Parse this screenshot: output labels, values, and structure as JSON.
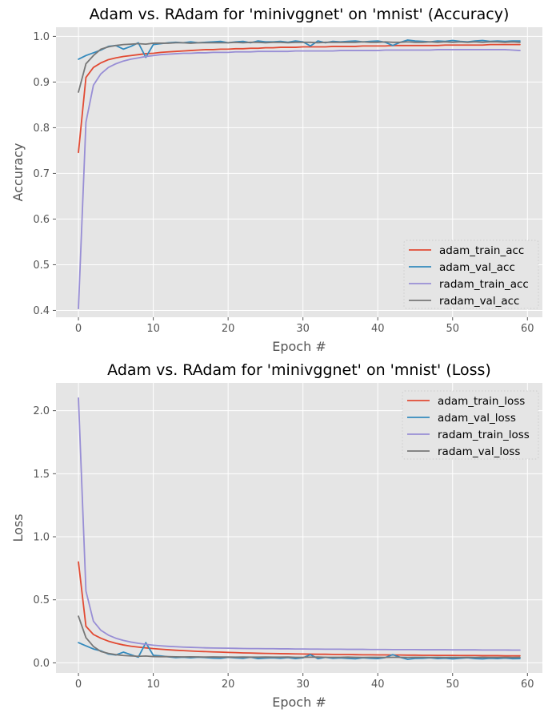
{
  "chart_data": [
    {
      "type": "line",
      "title": "Adam vs. RAdam for 'minivggnet' on 'mnist' (Accuracy)",
      "xlabel": "Epoch #",
      "ylabel": "Accuracy",
      "xlim": [
        -3,
        62
      ],
      "ylim": [
        0.385,
        1.02
      ],
      "xticks": [
        0,
        10,
        20,
        30,
        40,
        50,
        60
      ],
      "yticks": [
        0.4,
        0.5,
        0.6,
        0.7,
        0.8,
        0.9,
        1.0
      ],
      "ytick_labels": [
        "0.4",
        "0.5",
        "0.6",
        "0.7",
        "0.8",
        "0.9",
        "1.0"
      ],
      "grid": true,
      "legend_position": "lower-right",
      "x": [
        0,
        1,
        2,
        3,
        4,
        5,
        6,
        7,
        8,
        9,
        10,
        11,
        12,
        13,
        14,
        15,
        16,
        17,
        18,
        19,
        20,
        21,
        22,
        23,
        24,
        25,
        26,
        27,
        28,
        29,
        30,
        31,
        32,
        33,
        34,
        35,
        36,
        37,
        38,
        39,
        40,
        41,
        42,
        43,
        44,
        45,
        46,
        47,
        48,
        49,
        50,
        51,
        52,
        53,
        54,
        55,
        56,
        57,
        58,
        59
      ],
      "series": [
        {
          "name": "adam_train_acc",
          "color": "#E24A33",
          "values": [
            0.746,
            0.91,
            0.932,
            0.942,
            0.949,
            0.953,
            0.956,
            0.958,
            0.96,
            0.962,
            0.963,
            0.965,
            0.966,
            0.967,
            0.968,
            0.969,
            0.97,
            0.971,
            0.971,
            0.972,
            0.972,
            0.973,
            0.973,
            0.974,
            0.974,
            0.975,
            0.975,
            0.976,
            0.976,
            0.976,
            0.977,
            0.977,
            0.977,
            0.977,
            0.978,
            0.978,
            0.978,
            0.978,
            0.979,
            0.979,
            0.979,
            0.979,
            0.98,
            0.98,
            0.98,
            0.98,
            0.98,
            0.98,
            0.98,
            0.981,
            0.981,
            0.981,
            0.981,
            0.981,
            0.981,
            0.982,
            0.982,
            0.982,
            0.982,
            0.982
          ]
        },
        {
          "name": "adam_val_acc",
          "color": "#348ABD",
          "values": [
            0.95,
            0.958,
            0.964,
            0.97,
            0.978,
            0.98,
            0.972,
            0.978,
            0.986,
            0.954,
            0.982,
            0.984,
            0.986,
            0.987,
            0.986,
            0.988,
            0.986,
            0.987,
            0.988,
            0.989,
            0.986,
            0.988,
            0.989,
            0.986,
            0.99,
            0.988,
            0.988,
            0.989,
            0.987,
            0.99,
            0.988,
            0.979,
            0.99,
            0.986,
            0.989,
            0.988,
            0.989,
            0.99,
            0.988,
            0.989,
            0.99,
            0.987,
            0.98,
            0.987,
            0.992,
            0.99,
            0.989,
            0.988,
            0.99,
            0.989,
            0.991,
            0.989,
            0.988,
            0.99,
            0.991,
            0.989,
            0.99,
            0.989,
            0.99,
            0.99
          ]
        },
        {
          "name": "radam_train_acc",
          "color": "#988ED5",
          "values": [
            0.404,
            0.812,
            0.893,
            0.918,
            0.932,
            0.94,
            0.946,
            0.95,
            0.953,
            0.956,
            0.958,
            0.96,
            0.961,
            0.962,
            0.963,
            0.963,
            0.964,
            0.964,
            0.965,
            0.965,
            0.965,
            0.966,
            0.966,
            0.966,
            0.967,
            0.967,
            0.967,
            0.967,
            0.967,
            0.968,
            0.968,
            0.968,
            0.968,
            0.968,
            0.968,
            0.969,
            0.969,
            0.969,
            0.969,
            0.969,
            0.969,
            0.97,
            0.97,
            0.97,
            0.97,
            0.97,
            0.97,
            0.97,
            0.971,
            0.971,
            0.971,
            0.971,
            0.971,
            0.971,
            0.971,
            0.971,
            0.971,
            0.971,
            0.97,
            0.969
          ]
        },
        {
          "name": "radam_val_acc",
          "color": "#777777",
          "values": [
            0.878,
            0.94,
            0.958,
            0.972,
            0.977,
            0.98,
            0.982,
            0.983,
            0.984,
            0.983,
            0.985,
            0.985,
            0.985,
            0.986,
            0.986,
            0.985,
            0.986,
            0.986,
            0.986,
            0.986,
            0.986,
            0.987,
            0.986,
            0.987,
            0.987,
            0.986,
            0.987,
            0.987,
            0.986,
            0.987,
            0.987,
            0.987,
            0.986,
            0.987,
            0.987,
            0.987,
            0.987,
            0.987,
            0.988,
            0.987,
            0.987,
            0.988,
            0.987,
            0.987,
            0.988,
            0.987,
            0.987,
            0.988,
            0.987,
            0.988,
            0.987,
            0.988,
            0.987,
            0.988,
            0.987,
            0.988,
            0.988,
            0.987,
            0.988,
            0.987
          ]
        }
      ]
    },
    {
      "type": "line",
      "title": "Adam vs. RAdam for 'minivggnet' on 'mnist' (Loss)",
      "xlabel": "Epoch #",
      "ylabel": "Loss",
      "xlim": [
        -3,
        62
      ],
      "ylim": [
        -0.08,
        2.22
      ],
      "xticks": [
        0,
        10,
        20,
        30,
        40,
        50,
        60
      ],
      "yticks": [
        0.0,
        0.5,
        1.0,
        1.5,
        2.0
      ],
      "ytick_labels": [
        "0.0",
        "0.5",
        "1.0",
        "1.5",
        "2.0"
      ],
      "grid": true,
      "legend_position": "upper-right",
      "x": [
        0,
        1,
        2,
        3,
        4,
        5,
        6,
        7,
        8,
        9,
        10,
        11,
        12,
        13,
        14,
        15,
        16,
        17,
        18,
        19,
        20,
        21,
        22,
        23,
        24,
        25,
        26,
        27,
        28,
        29,
        30,
        31,
        32,
        33,
        34,
        35,
        36,
        37,
        38,
        39,
        40,
        41,
        42,
        43,
        44,
        45,
        46,
        47,
        48,
        49,
        50,
        51,
        52,
        53,
        54,
        55,
        56,
        57,
        58,
        59
      ],
      "series": [
        {
          "name": "adam_train_loss",
          "color": "#E24A33",
          "values": [
            0.8,
            0.29,
            0.225,
            0.195,
            0.172,
            0.155,
            0.142,
            0.132,
            0.125,
            0.119,
            0.113,
            0.108,
            0.104,
            0.1,
            0.097,
            0.094,
            0.091,
            0.089,
            0.087,
            0.085,
            0.083,
            0.081,
            0.079,
            0.078,
            0.076,
            0.075,
            0.074,
            0.073,
            0.072,
            0.071,
            0.07,
            0.069,
            0.068,
            0.068,
            0.067,
            0.066,
            0.066,
            0.065,
            0.064,
            0.064,
            0.063,
            0.063,
            0.062,
            0.062,
            0.061,
            0.061,
            0.06,
            0.06,
            0.059,
            0.059,
            0.059,
            0.058,
            0.058,
            0.058,
            0.057,
            0.057,
            0.057,
            0.056,
            0.056,
            0.056
          ]
        },
        {
          "name": "adam_val_loss",
          "color": "#348ABD",
          "values": [
            0.16,
            0.135,
            0.11,
            0.095,
            0.07,
            0.062,
            0.085,
            0.065,
            0.045,
            0.16,
            0.06,
            0.055,
            0.048,
            0.042,
            0.045,
            0.04,
            0.045,
            0.042,
            0.038,
            0.036,
            0.044,
            0.039,
            0.036,
            0.045,
            0.034,
            0.038,
            0.04,
            0.036,
            0.042,
            0.034,
            0.04,
            0.065,
            0.033,
            0.044,
            0.036,
            0.039,
            0.035,
            0.032,
            0.04,
            0.036,
            0.034,
            0.042,
            0.065,
            0.044,
            0.028,
            0.035,
            0.036,
            0.04,
            0.034,
            0.037,
            0.031,
            0.036,
            0.04,
            0.034,
            0.031,
            0.036,
            0.034,
            0.038,
            0.033,
            0.034
          ]
        },
        {
          "name": "radam_train_loss",
          "color": "#988ED5",
          "values": [
            2.1,
            0.57,
            0.33,
            0.258,
            0.22,
            0.195,
            0.178,
            0.165,
            0.155,
            0.147,
            0.14,
            0.135,
            0.131,
            0.128,
            0.125,
            0.123,
            0.121,
            0.119,
            0.118,
            0.117,
            0.116,
            0.115,
            0.114,
            0.113,
            0.113,
            0.112,
            0.112,
            0.111,
            0.111,
            0.11,
            0.11,
            0.109,
            0.109,
            0.108,
            0.108,
            0.108,
            0.107,
            0.107,
            0.107,
            0.106,
            0.106,
            0.106,
            0.105,
            0.105,
            0.105,
            0.105,
            0.104,
            0.104,
            0.104,
            0.104,
            0.103,
            0.103,
            0.103,
            0.103,
            0.102,
            0.102,
            0.102,
            0.102,
            0.101,
            0.101
          ]
        },
        {
          "name": "radam_val_loss",
          "color": "#777777",
          "values": [
            0.37,
            0.2,
            0.13,
            0.09,
            0.075,
            0.065,
            0.058,
            0.055,
            0.052,
            0.054,
            0.05,
            0.049,
            0.049,
            0.048,
            0.047,
            0.048,
            0.047,
            0.046,
            0.047,
            0.046,
            0.046,
            0.045,
            0.046,
            0.045,
            0.045,
            0.046,
            0.045,
            0.045,
            0.046,
            0.044,
            0.044,
            0.045,
            0.046,
            0.044,
            0.044,
            0.044,
            0.045,
            0.044,
            0.043,
            0.044,
            0.044,
            0.043,
            0.044,
            0.044,
            0.043,
            0.044,
            0.044,
            0.043,
            0.044,
            0.043,
            0.044,
            0.043,
            0.044,
            0.043,
            0.044,
            0.043,
            0.043,
            0.044,
            0.043,
            0.044
          ]
        }
      ]
    }
  ]
}
